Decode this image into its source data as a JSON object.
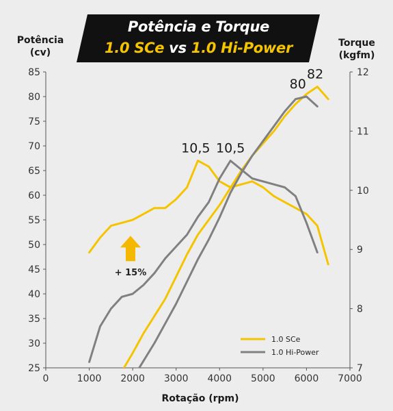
{
  "header": {
    "title": "Potência e Torque",
    "subtitle_part1": "1.0 SCe",
    "subtitle_vs": " vs ",
    "subtitle_part2": "1.0 Hi-Power"
  },
  "axis_titles": {
    "left_line1": "Potência",
    "left_line2": "(cv)",
    "right_line1": "Torque",
    "right_line2": "(kgfm)",
    "bottom": "Rotação (rpm)"
  },
  "colors": {
    "sce": "#f5c400",
    "hipower": "#808080",
    "banner": "#111111",
    "background": "#ededed"
  },
  "chart_data": {
    "type": "line",
    "title": "Potência e Torque",
    "subtitle": "1.0 SCe vs 1.0 Hi-Power",
    "xlabel": "Rotação (rpm)",
    "ylabel_left": "Potência (cv)",
    "ylabel_right": "Torque (kgfm)",
    "xlim": [
      0,
      7000
    ],
    "ylim_left": [
      25,
      85
    ],
    "ylim_right": [
      7,
      12
    ],
    "x_ticks": [
      "0",
      "1000",
      "2000",
      "3000",
      "4000",
      "5000",
      "6000",
      "7000"
    ],
    "y_left_ticks": [
      "25",
      "30",
      "35",
      "40",
      "45",
      "50",
      "55",
      "60",
      "65",
      "70",
      "75",
      "80",
      "85"
    ],
    "y_right_ticks": [
      "7",
      "8",
      "9",
      "10",
      "11",
      "12"
    ],
    "grid": false,
    "legend_position": "bottom-right",
    "series": [
      {
        "name": "1.0 SCe",
        "quantity": "torque",
        "axis": "right",
        "color": "#f5c400",
        "x": [
          1000,
          1250,
          1500,
          1750,
          2000,
          2250,
          2500,
          2750,
          3000,
          3250,
          3500,
          3750,
          4000,
          4250,
          4500,
          4750,
          5000,
          5250,
          5500,
          5750,
          6000,
          6250,
          6500
        ],
        "y": [
          8.95,
          9.2,
          9.4,
          9.45,
          9.5,
          9.6,
          9.7,
          9.7,
          9.85,
          10.05,
          10.5,
          10.4,
          10.15,
          10.05,
          10.1,
          10.15,
          10.05,
          9.9,
          9.8,
          9.7,
          9.6,
          9.4,
          8.75
        ]
      },
      {
        "name": "1.0 SCe",
        "quantity": "power",
        "axis": "left",
        "color": "#f5c400",
        "x": [
          1800,
          2000,
          2250,
          2500,
          2750,
          3000,
          3250,
          3500,
          3750,
          4000,
          4250,
          4500,
          4750,
          5000,
          5250,
          5500,
          5750,
          6000,
          6250,
          6500
        ],
        "y": [
          25,
          28,
          32,
          35.5,
          39,
          43.5,
          48,
          52,
          55,
          58,
          61.5,
          65,
          68,
          70.5,
          73,
          76,
          78.5,
          80.5,
          82,
          79.5
        ]
      },
      {
        "name": "1.0 Hi-Power",
        "quantity": "torque",
        "axis": "right",
        "color": "#808080",
        "x": [
          1000,
          1250,
          1500,
          1750,
          2000,
          2250,
          2500,
          2750,
          3000,
          3250,
          3500,
          3750,
          4000,
          4250,
          4500,
          4750,
          5000,
          5250,
          5500,
          5750,
          6000,
          6250
        ],
        "y": [
          7.1,
          7.7,
          8.0,
          8.2,
          8.25,
          8.4,
          8.6,
          8.85,
          9.05,
          9.25,
          9.55,
          9.8,
          10.2,
          10.5,
          10.35,
          10.2,
          10.15,
          10.1,
          10.05,
          9.9,
          9.45,
          8.95
        ]
      },
      {
        "name": "1.0 Hi-Power",
        "quantity": "power",
        "axis": "left",
        "color": "#808080",
        "x": [
          2150,
          2500,
          2750,
          3000,
          3250,
          3500,
          3750,
          4000,
          4250,
          4500,
          4750,
          5000,
          5250,
          5500,
          5750,
          6000,
          6250
        ],
        "y": [
          25,
          30,
          34,
          38,
          42.5,
          47,
          51,
          55.5,
          60.5,
          64.5,
          68,
          71,
          74,
          77,
          79.5,
          80,
          78
        ]
      }
    ],
    "annotations": [
      {
        "text": "10,5",
        "x": 3450,
        "y": 10.5,
        "axis": "right"
      },
      {
        "text": "10,5",
        "x": 4250,
        "y": 10.5,
        "axis": "right"
      },
      {
        "text": "80",
        "x": 5800,
        "y": 80,
        "axis": "left"
      },
      {
        "text": "82",
        "x": 6200,
        "y": 82,
        "axis": "left"
      },
      {
        "text": "+ 15%",
        "x": 1950,
        "y": 9.0,
        "axis": "right"
      }
    ]
  }
}
